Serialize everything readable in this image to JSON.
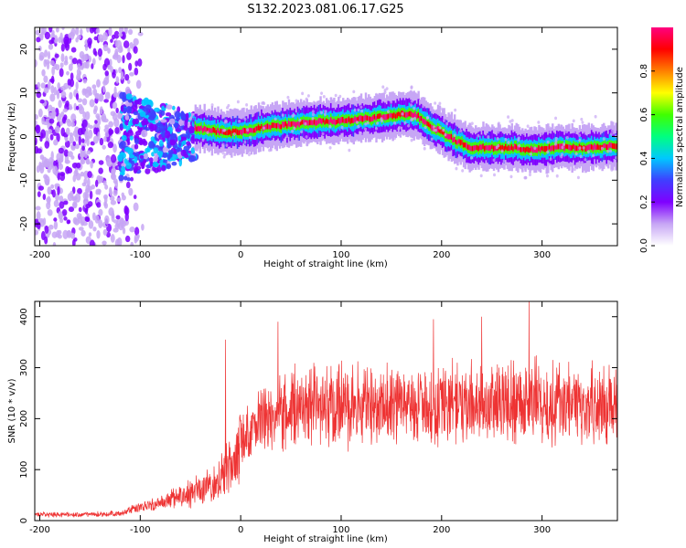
{
  "figure_title": "S132.2023.081.06.17.G25",
  "chart_data": [
    {
      "type": "heatmap",
      "xlabel": "Height of straight line (km)",
      "ylabel": "Frequency (Hz)",
      "colorbar_label": "Normalized spectral amplitude",
      "xlim": [
        -205,
        375
      ],
      "ylim": [
        -25,
        25
      ],
      "xticks": [
        -200,
        -100,
        0,
        100,
        200,
        300
      ],
      "yticks": [
        -20,
        -10,
        0,
        10,
        20
      ],
      "colorbar_range": [
        0,
        1
      ],
      "colorbar_ticks": [
        0.0,
        0.2,
        0.4,
        0.6,
        0.8
      ],
      "colormap": [
        "#ffffff",
        "#c7a6f5",
        "#7f00ff",
        "#3f3fff",
        "#00c8ff",
        "#00ff80",
        "#40ff00",
        "#ffff00",
        "#ff8000",
        "#ff0000",
        "#ff0080"
      ],
      "frequency_trace": {
        "x": [
          -45,
          -20,
          0,
          20,
          40,
          60,
          80,
          100,
          120,
          140,
          160,
          175,
          185,
          200,
          215,
          230,
          250,
          270,
          290,
          310,
          330,
          350,
          375
        ],
        "freq": [
          2,
          1,
          1,
          2,
          2.5,
          3,
          3.5,
          3.5,
          4,
          4.5,
          5,
          5,
          3,
          1,
          -1,
          -2.5,
          -2.5,
          -2.5,
          -3,
          -2.5,
          -2.5,
          -2.5,
          -2
        ]
      },
      "noise_region": {
        "x_range": [
          -205,
          -120
        ],
        "note": "scattered broadband noise"
      },
      "transition_region": {
        "x_range": [
          -120,
          -45
        ],
        "freq_center": 0
      }
    },
    {
      "type": "line",
      "xlabel": "Height of straight line (km)",
      "ylabel": "SNR (10 * v/v)",
      "xlim": [
        -205,
        375
      ],
      "ylim": [
        0,
        430
      ],
      "xticks": [
        -200,
        -100,
        0,
        100,
        200,
        300
      ],
      "yticks": [
        0,
        100,
        200,
        300,
        400
      ],
      "color": "#ee3333",
      "trend": {
        "x": [
          -205,
          -150,
          -120,
          -100,
          -80,
          -60,
          -40,
          -30,
          -20,
          -10,
          0,
          10,
          20,
          30,
          40,
          60,
          80,
          100,
          140,
          180,
          220,
          260,
          290,
          300,
          330,
          360,
          375
        ],
        "snr": [
          12,
          12,
          14,
          25,
          35,
          45,
          60,
          70,
          80,
          110,
          150,
          175,
          200,
          210,
          215,
          220,
          225,
          225,
          230,
          232,
          230,
          235,
          240,
          225,
          225,
          225,
          225
        ]
      },
      "peaks": [
        {
          "x": -15,
          "snr": 355
        },
        {
          "x": 37,
          "snr": 390
        },
        {
          "x": 192,
          "snr": 395
        },
        {
          "x": 240,
          "snr": 400
        },
        {
          "x": 287,
          "snr": 430
        }
      ]
    }
  ]
}
